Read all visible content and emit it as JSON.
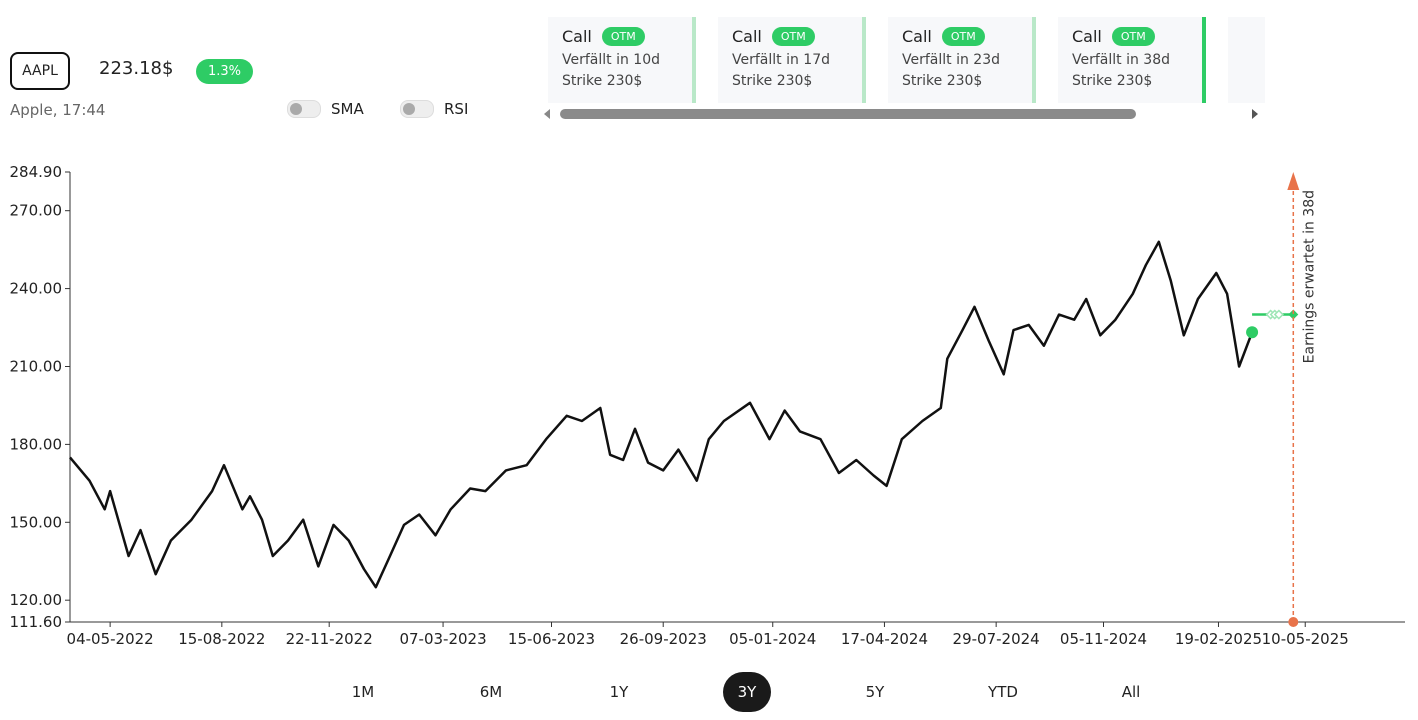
{
  "header": {
    "ticker": "AAPL",
    "price": "223.18$",
    "change": "1.3%",
    "subtitle": "Apple, 17:44"
  },
  "toggles": [
    "SMA",
    "RSI"
  ],
  "options": [
    {
      "type": "Call",
      "badge": "OTM",
      "expiry": "Verfällt in 10d",
      "strike": "Strike 230$"
    },
    {
      "type": "Call",
      "badge": "OTM",
      "expiry": "Verfällt in 17d",
      "strike": "Strike 230$"
    },
    {
      "type": "Call",
      "badge": "OTM",
      "expiry": "Verfällt in 23d",
      "strike": "Strike 230$"
    },
    {
      "type": "Call",
      "badge": "OTM",
      "expiry": "Verfällt in 38d",
      "strike": "Strike 230$"
    }
  ],
  "ranges": [
    "1M",
    "6M",
    "1Y",
    "3Y",
    "5Y",
    "YTD",
    "All"
  ],
  "active_range": "3Y",
  "chart_data": {
    "type": "line",
    "color": "#111111",
    "x": [
      "2022-03-28",
      "2022-04-15",
      "2022-04-29",
      "2022-05-04",
      "2022-05-21",
      "2022-06-01",
      "2022-06-15",
      "2022-06-29",
      "2022-07-18",
      "2022-08-06",
      "2022-08-17",
      "2022-09-03",
      "2022-09-10",
      "2022-09-21",
      "2022-10-01",
      "2022-10-15",
      "2022-10-29",
      "2022-11-12",
      "2022-11-26",
      "2022-12-10",
      "2022-12-24",
      "2023-01-04",
      "2023-01-16",
      "2023-01-30",
      "2023-02-13",
      "2023-02-28",
      "2023-03-14",
      "2023-04-01",
      "2023-04-15",
      "2023-05-04",
      "2023-05-23",
      "2023-06-10",
      "2023-06-29",
      "2023-07-13",
      "2023-07-30",
      "2023-08-08",
      "2023-08-20",
      "2023-08-31",
      "2023-09-12",
      "2023-09-26",
      "2023-10-10",
      "2023-10-27",
      "2023-11-07",
      "2023-11-21",
      "2023-12-15",
      "2024-01-02",
      "2024-01-16",
      "2024-01-30",
      "2024-02-18",
      "2024-03-06",
      "2024-03-22",
      "2024-04-07",
      "2024-04-19",
      "2024-05-03",
      "2024-05-22",
      "2024-06-08",
      "2024-06-14",
      "2024-06-28",
      "2024-07-09",
      "2024-07-22",
      "2024-08-05",
      "2024-08-14",
      "2024-08-28",
      "2024-09-11",
      "2024-09-25",
      "2024-10-09",
      "2024-10-20",
      "2024-11-02",
      "2024-11-16",
      "2024-12-02",
      "2024-12-14",
      "2024-12-26",
      "2025-01-06",
      "2025-01-18",
      "2025-01-31",
      "2025-02-17",
      "2025-02-27",
      "2025-03-10",
      "2025-03-22"
    ],
    "values": [
      175,
      166,
      155,
      162,
      137,
      147,
      130,
      143,
      151,
      162,
      172,
      155,
      160,
      151,
      137,
      143,
      151,
      133,
      149,
      143,
      132,
      125,
      136,
      149,
      153,
      145,
      155,
      163,
      162,
      170,
      172,
      182,
      191,
      189,
      194,
      176,
      174,
      186,
      173,
      170,
      178,
      166,
      182,
      189,
      196,
      182,
      193,
      185,
      182,
      169,
      174,
      168,
      164,
      182,
      189,
      194,
      213,
      224,
      233,
      220,
      207,
      224,
      226,
      218,
      230,
      228,
      236,
      222,
      228,
      238,
      249,
      258,
      243,
      222,
      236,
      246,
      238,
      210,
      223.18
    ],
    "xlim": [
      "2022-03-28",
      "2025-08-10"
    ],
    "xticks": [
      {
        "value": "2022-05-04",
        "label": "04-05-2022"
      },
      {
        "value": "2022-08-15",
        "label": "15-08-2022"
      },
      {
        "value": "2022-11-22",
        "label": "22-11-2022"
      },
      {
        "value": "2023-03-07",
        "label": "07-03-2023"
      },
      {
        "value": "2023-06-15",
        "label": "15-06-2023"
      },
      {
        "value": "2023-09-26",
        "label": "26-09-2023"
      },
      {
        "value": "2024-01-05",
        "label": "05-01-2024"
      },
      {
        "value": "2024-04-17",
        "label": "17-04-2024"
      },
      {
        "value": "2024-07-29",
        "label": "29-07-2024"
      },
      {
        "value": "2024-11-05",
        "label": "05-11-2024"
      },
      {
        "value": "2025-02-19",
        "label": "19-02-2025"
      },
      {
        "value": "2025-05-10",
        "label": "10-05-2025"
      }
    ],
    "ylim": [
      111.6,
      284.9
    ],
    "yticks": [
      {
        "value": 111.6,
        "label": "111.60"
      },
      {
        "value": 120,
        "label": "120.00"
      },
      {
        "value": 150,
        "label": "150.00"
      },
      {
        "value": 180,
        "label": "180.00"
      },
      {
        "value": 210,
        "label": "210.00"
      },
      {
        "value": 240,
        "label": "240.00"
      },
      {
        "value": 270,
        "label": "270.00"
      },
      {
        "value": 284.9,
        "label": "284.90"
      }
    ],
    "last_point_color": "#2ecc65",
    "strike": 230,
    "strike_color": "#2ecc65",
    "earnings": {
      "date": "2025-04-29",
      "label": "Earnings erwartet in 38d",
      "color": "#e8734a"
    }
  }
}
